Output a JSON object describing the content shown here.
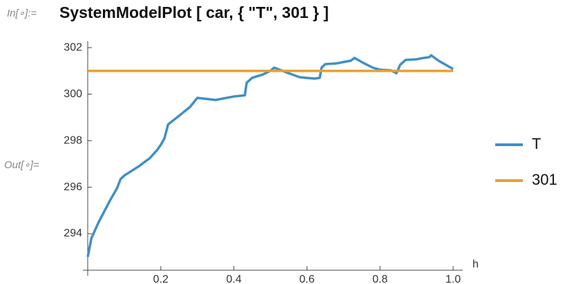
{
  "input_label": "In[∘]:=",
  "input_code": "SystemModelPlot [ car, { \"T\", 301 } ]",
  "output_label": "Out[∘]=",
  "chart_data": {
    "type": "line",
    "x_label": "h",
    "x": [
      0,
      0.01,
      0.03,
      0.06,
      0.08,
      0.09,
      0.1,
      0.14,
      0.17,
      0.19,
      0.2,
      0.21,
      0.22,
      0.25,
      0.28,
      0.3,
      0.35,
      0.4,
      0.43,
      0.435,
      0.45,
      0.48,
      0.5,
      0.51,
      0.52,
      0.55,
      0.58,
      0.6,
      0.62,
      0.635,
      0.64,
      0.65,
      0.68,
      0.7,
      0.72,
      0.73,
      0.75,
      0.78,
      0.8,
      0.83,
      0.845,
      0.855,
      0.87,
      0.9,
      0.92,
      0.935,
      0.94,
      0.96,
      1.0
    ],
    "series": [
      {
        "name": "T",
        "color": "#3f8fc6",
        "values": [
          293.0,
          293.8,
          294.5,
          295.4,
          295.95,
          296.35,
          296.5,
          296.9,
          297.25,
          297.6,
          297.82,
          298.1,
          298.7,
          299.07,
          299.45,
          299.84,
          299.75,
          299.9,
          299.95,
          300.49,
          300.7,
          300.85,
          301.0,
          301.14,
          301.08,
          300.9,
          300.73,
          300.7,
          300.67,
          300.7,
          301.14,
          301.29,
          301.32,
          301.38,
          301.44,
          301.56,
          301.38,
          301.14,
          301.05,
          301.02,
          300.9,
          301.26,
          301.47,
          301.5,
          301.56,
          301.59,
          301.67,
          301.44,
          301.08
        ]
      },
      {
        "name": "301",
        "color": "#e8a030",
        "values": [
          301,
          301,
          301,
          301,
          301,
          301,
          301,
          301,
          301,
          301,
          301,
          301,
          301,
          301,
          301,
          301,
          301,
          301,
          301,
          301,
          301,
          301,
          301,
          301,
          301,
          301,
          301,
          301,
          301,
          301,
          301,
          301,
          301,
          301,
          301,
          301,
          301,
          301,
          301,
          301,
          301,
          301,
          301,
          301,
          301,
          301,
          301,
          301,
          301
        ]
      }
    ],
    "xlim": [
      0,
      1.0
    ],
    "ylim": [
      292.43,
      302.27
    ],
    "xticks": [
      0.2,
      0.4,
      0.6,
      0.8,
      {
        "value": 1,
        "label": "1.0"
      }
    ],
    "yticks": [
      294,
      296,
      298,
      300,
      302
    ]
  }
}
